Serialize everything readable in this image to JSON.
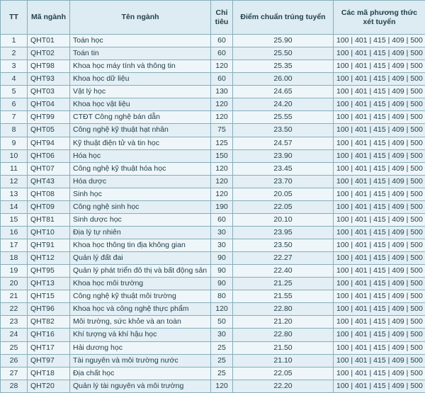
{
  "table": {
    "header": [
      "TT",
      "Mã ngành",
      "Tên ngành",
      "Chỉ tiêu",
      "Điểm chuẩn trúng tuyển",
      "Các mã phương thức xét tuyển"
    ],
    "rows": [
      [
        "1",
        "QHT01",
        "Toán học",
        "60",
        "25.90",
        "100 | 401 | 415 | 409 | 500"
      ],
      [
        "2",
        "QHT02",
        "Toán tin",
        "60",
        "25.50",
        "100 | 401 | 415 | 409 | 500"
      ],
      [
        "3",
        "QHT98",
        "Khoa học máy tính và thông tin",
        "120",
        "25.35",
        "100 | 401 | 415 | 409 | 500"
      ],
      [
        "4",
        "QHT93",
        "Khoa học dữ liệu",
        "60",
        "26.00",
        "100 | 401 | 415 | 409 | 500"
      ],
      [
        "5",
        "QHT03",
        "Vật lý học",
        "130",
        "24.65",
        "100 | 401 | 415 | 409 | 500"
      ],
      [
        "6",
        "QHT04",
        "Khoa học vật liệu",
        "120",
        "24.20",
        "100 | 401 | 415 | 409 | 500"
      ],
      [
        "7",
        "QHT99",
        "CTĐT Công nghệ bán dẫn",
        "120",
        "25.55",
        "100 | 401 | 415 | 409 | 500"
      ],
      [
        "8",
        "QHT05",
        "Công nghệ kỹ thuật hạt nhân",
        "75",
        "23.50",
        "100 | 401 | 415 | 409 | 500"
      ],
      [
        "9",
        "QHT94",
        "Kỹ thuật điện tử và tin học",
        "125",
        "24.57",
        "100 | 401 | 415 | 409 | 500"
      ],
      [
        "10",
        "QHT06",
        "Hóa học",
        "150",
        "23.90",
        "100 | 401 | 415 | 409 | 500"
      ],
      [
        "11",
        "QHT07",
        "Công nghệ kỹ thuật hóa học",
        "120",
        "23.45",
        "100 | 401 | 415 | 409 | 500"
      ],
      [
        "12",
        "QHT43",
        "Hóa dược",
        "120",
        "23.70",
        "100 | 401 | 415 | 409 | 500"
      ],
      [
        "13",
        "QHT08",
        "Sinh học",
        "120",
        "20.05",
        "100 | 401 | 415 | 409 | 500"
      ],
      [
        "14",
        "QHT09",
        "Công nghệ sinh học",
        "190",
        "22.05",
        "100 | 401 | 415 | 409 | 500"
      ],
      [
        "15",
        "QHT81",
        "Sinh dược học",
        "60",
        "20.10",
        "100 | 401 | 415 | 409 | 500"
      ],
      [
        "16",
        "QHT10",
        "Địa lý tự nhiên",
        "30",
        "23.95",
        "100 | 401 | 415 | 409 | 500"
      ],
      [
        "17",
        "QHT91",
        "Khoa học thông tin địa không gian",
        "30",
        "23.50",
        "100 | 401 | 415 | 409 | 500"
      ],
      [
        "18",
        "QHT12",
        "Quản lý đất đai",
        "90",
        "22.27",
        "100 | 401 | 415 | 409 | 500"
      ],
      [
        "19",
        "QHT95",
        "Quản lý phát triển đô thị và bất động sản",
        "90",
        "22.40",
        "100 | 401 | 415 | 409 | 500"
      ],
      [
        "20",
        "QHT13",
        "Khoa học môi trường",
        "90",
        "21.25",
        "100 | 401 | 415 | 409 | 500"
      ],
      [
        "21",
        "QHT15",
        "Công nghệ kỹ thuật môi trường",
        "80",
        "21.55",
        "100 | 401 | 415 | 409 | 500"
      ],
      [
        "22",
        "QHT96",
        "Khoa học và công nghệ thực phẩm",
        "120",
        "22.80",
        "100 | 401 | 415 | 409 | 500"
      ],
      [
        "23",
        "QHT82",
        "Môi trường, sức khỏe và an toàn",
        "50",
        "21.20",
        "100 | 401 | 415 | 409 | 500"
      ],
      [
        "24",
        "QHT16",
        "Khí tượng và khí hậu học",
        "30",
        "22.80",
        "100 | 401 | 415 | 409 | 500"
      ],
      [
        "25",
        "QHT17",
        "Hải dương học",
        "25",
        "21.50",
        "100 | 401 | 415 | 409 | 500"
      ],
      [
        "26",
        "QHT97",
        "Tài nguyên và môi trường nước",
        "25",
        "21.10",
        "100 | 401 | 415 | 409 | 500"
      ],
      [
        "27",
        "QHT18",
        "Địa chất học",
        "25",
        "22.05",
        "100 | 401 | 415 | 409 | 500"
      ],
      [
        "28",
        "QHT20",
        "Quản lý tài nguyên và môi trường",
        "120",
        "22.20",
        "100 | 401 | 415 | 409 | 500"
      ]
    ]
  }
}
